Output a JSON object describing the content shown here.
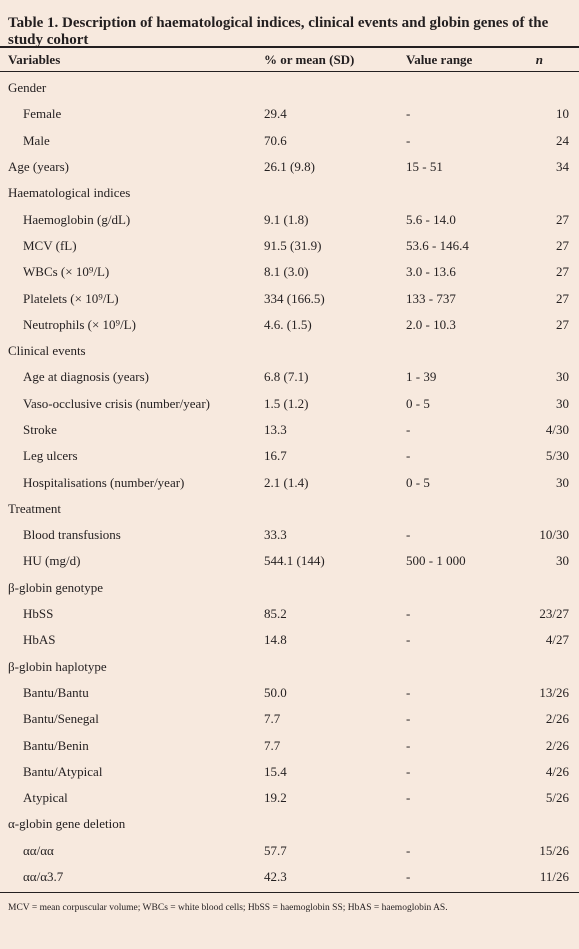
{
  "caption": "Table 1. Description of haematological indices, clinical events and globin genes of the study cohort",
  "headers": {
    "variables": "Variables",
    "mean": "% or mean (SD)",
    "range": "Value range",
    "n": "n"
  },
  "rows": [
    {
      "label": "Gender",
      "indent": false,
      "mean": "",
      "range": "",
      "n": ""
    },
    {
      "label": "Female",
      "indent": true,
      "mean": "29.4",
      "range": "-",
      "n": "10"
    },
    {
      "label": "Male",
      "indent": true,
      "mean": "70.6",
      "range": "-",
      "n": "24"
    },
    {
      "label": "Age (years)",
      "indent": false,
      "mean": "26.1 (9.8)",
      "range": "15 - 51",
      "n": "34"
    },
    {
      "label": "Haematological indices",
      "indent": false,
      "mean": "",
      "range": "",
      "n": ""
    },
    {
      "label": "Haemoglobin (g/dL)",
      "indent": true,
      "mean": "9.1 (1.8)",
      "range": "5.6 - 14.0",
      "n": "27"
    },
    {
      "label": "MCV (fL)",
      "indent": true,
      "mean": "91.5 (31.9)",
      "range": "53.6 - 146.4",
      "n": "27"
    },
    {
      "label": "WBCs (× 10⁹/L)",
      "indent": true,
      "mean": "8.1 (3.0)",
      "range": "3.0 - 13.6",
      "n": "27"
    },
    {
      "label": "Platelets (× 10⁹/L)",
      "indent": true,
      "mean": "334 (166.5)",
      "range": "133 - 737",
      "n": "27"
    },
    {
      "label": "Neutrophils (× 10⁹/L)",
      "indent": true,
      "mean": "4.6. (1.5)",
      "range": "2.0 - 10.3",
      "n": "27"
    },
    {
      "label": "Clinical events",
      "indent": false,
      "mean": "",
      "range": "",
      "n": ""
    },
    {
      "label": "Age at diagnosis (years)",
      "indent": true,
      "mean": "6.8 (7.1)",
      "range": "1 - 39",
      "n": "30"
    },
    {
      "label": "Vaso-occlusive crisis (number/year)",
      "indent": true,
      "mean": "1.5 (1.2)",
      "range": "0 - 5",
      "n": "30"
    },
    {
      "label": "Stroke",
      "indent": true,
      "mean": "13.3",
      "range": "-",
      "n": "4/30"
    },
    {
      "label": "Leg ulcers",
      "indent": true,
      "mean": "16.7",
      "range": "-",
      "n": "5/30"
    },
    {
      "label": "Hospitalisations (number/year)",
      "indent": true,
      "mean": "2.1 (1.4)",
      "range": "0 - 5",
      "n": "30"
    },
    {
      "label": "Treatment",
      "indent": false,
      "mean": "",
      "range": "",
      "n": ""
    },
    {
      "label": "Blood transfusions",
      "indent": true,
      "mean": "33.3",
      "range": "-",
      "n": "10/30"
    },
    {
      "label": "HU (mg/d)",
      "indent": true,
      "mean": "544.1 (144)",
      "range": "500 - 1 000",
      "n": "30"
    },
    {
      "label": "β-globin genotype",
      "indent": false,
      "mean": "",
      "range": "",
      "n": ""
    },
    {
      "label": "HbSS",
      "indent": true,
      "mean": "85.2",
      "range": "-",
      "n": "23/27"
    },
    {
      "label": "HbAS",
      "indent": true,
      "mean": "14.8",
      "range": "-",
      "n": "4/27"
    },
    {
      "label": "β-globin haplotype",
      "indent": false,
      "mean": "",
      "range": "",
      "n": ""
    },
    {
      "label": "Bantu/Bantu",
      "indent": true,
      "mean": "50.0",
      "range": "-",
      "n": "13/26"
    },
    {
      "label": "Bantu/Senegal",
      "indent": true,
      "mean": "7.7",
      "range": "-",
      "n": "2/26"
    },
    {
      "label": "Bantu/Benin",
      "indent": true,
      "mean": "7.7",
      "range": "-",
      "n": "2/26"
    },
    {
      "label": "Bantu/Atypical",
      "indent": true,
      "mean": "15.4",
      "range": "-",
      "n": "4/26"
    },
    {
      "label": "Atypical",
      "indent": true,
      "mean": "19.2",
      "range": "-",
      "n": "5/26"
    },
    {
      "label": "α-globin gene deletion",
      "indent": false,
      "mean": "",
      "range": "",
      "n": ""
    },
    {
      "label": "αα/αα",
      "indent": true,
      "mean": "57.7",
      "range": "-",
      "n": "15/26"
    },
    {
      "label": "αα/α3.7",
      "indent": true,
      "mean": "42.3",
      "range": "-",
      "n": "11/26"
    }
  ],
  "footnote": "MCV = mean corpuscular volume; WBCs = white blood cells; HbSS = haemoglobin SS; HbAS = haemoglobin AS.",
  "colors": {
    "background": "#f7e9de",
    "text": "#231f20",
    "rule": "#231f20"
  }
}
